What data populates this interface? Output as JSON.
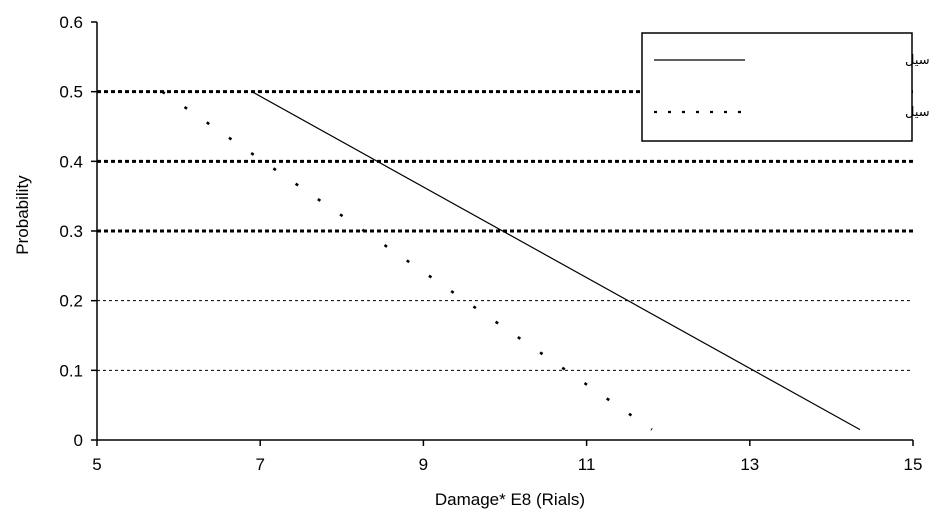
{
  "chart_data": {
    "type": "line",
    "title": "",
    "xlabel": "Damage* E8 (Rials)",
    "ylabel": "Probability",
    "xlim": [
      5,
      15
    ],
    "ylim": [
      0,
      0.6
    ],
    "x_ticks": [
      "5",
      "7",
      "9",
      "11",
      "13",
      "15"
    ],
    "y_ticks": [
      "0",
      "0.1",
      "0.2",
      "0.3",
      "0.4",
      "0.5",
      "0.6"
    ],
    "grid": "horizontal dashed",
    "legend_position": "top-right",
    "series": [
      {
        "name": "بدون سیستم هشدار سیل",
        "style": "solid",
        "color": "#000000",
        "points": [
          [
            6.9,
            0.5
          ],
          [
            14.35,
            0.015
          ]
        ]
      },
      {
        "name": "با سیستم هشدار سیل",
        "style": "dotted",
        "color": "#000000",
        "points": [
          [
            5.8,
            0.5
          ],
          [
            11.8,
            0.015
          ]
        ]
      }
    ]
  }
}
